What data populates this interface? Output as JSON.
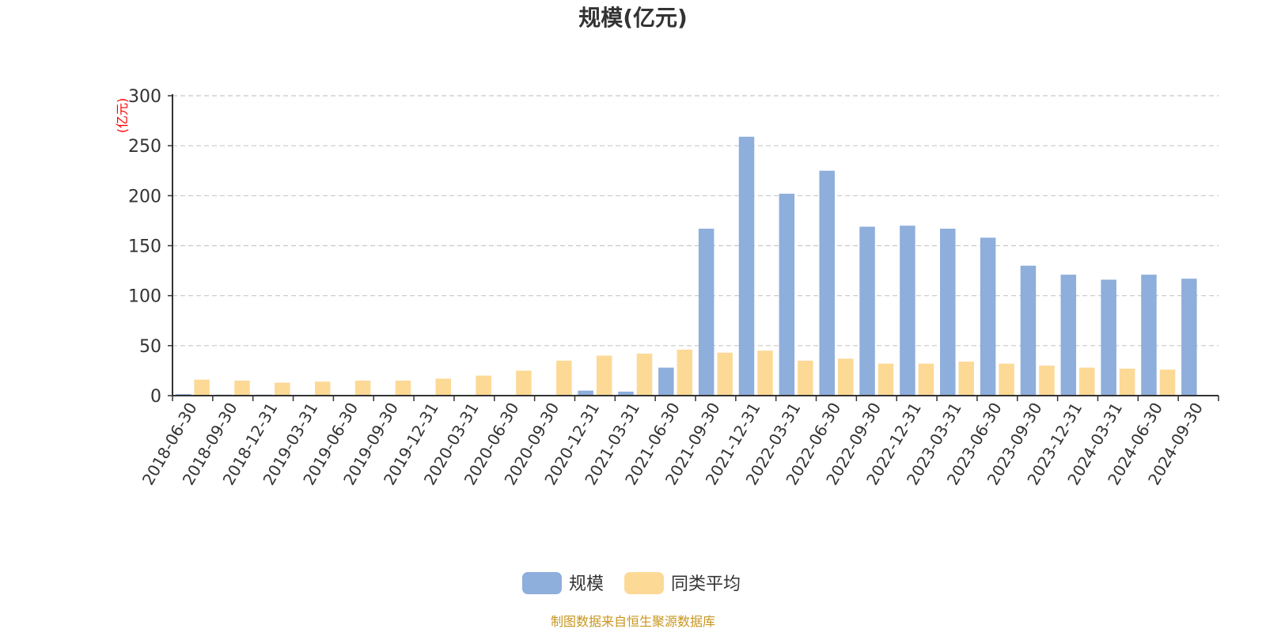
{
  "chart_data": {
    "type": "bar",
    "title": "规模(亿元)",
    "ylabel": "(亿元)",
    "xlabel": "",
    "ylim": [
      0,
      300
    ],
    "yticks": [
      0,
      50,
      100,
      150,
      200,
      250,
      300
    ],
    "grid": true,
    "legend_position": "bottom-center",
    "categories": [
      "2018-06-30",
      "2018-09-30",
      "2018-12-31",
      "2019-03-31",
      "2019-06-30",
      "2019-09-30",
      "2019-12-31",
      "2020-03-31",
      "2020-06-30",
      "2020-09-30",
      "2020-12-31",
      "2021-03-31",
      "2021-06-30",
      "2021-09-30",
      "2021-12-31",
      "2022-03-31",
      "2022-06-30",
      "2022-09-30",
      "2022-12-31",
      "2023-03-31",
      "2023-06-30",
      "2023-09-30",
      "2023-12-31",
      "2024-03-31",
      "2024-06-30",
      "2024-09-30"
    ],
    "series": [
      {
        "name": "规模",
        "color": "#8eaedb",
        "values": [
          1.5,
          1.0,
          1.0,
          0.5,
          0.5,
          0.3,
          0.2,
          0.2,
          0.2,
          0.2,
          5,
          4,
          28,
          167,
          259,
          202,
          225,
          169,
          170,
          167,
          158,
          130,
          121,
          116,
          121,
          117
        ]
      },
      {
        "name": "同类平均",
        "color": "#fdd996",
        "values": [
          16,
          15,
          13,
          14,
          15,
          15,
          17,
          20,
          25,
          35,
          40,
          42,
          46,
          43,
          45,
          35,
          37,
          32,
          32,
          34,
          32,
          30,
          28,
          27,
          26,
          0
        ]
      }
    ]
  },
  "footer": {
    "source": "制图数据来自恒生聚源数据库"
  }
}
